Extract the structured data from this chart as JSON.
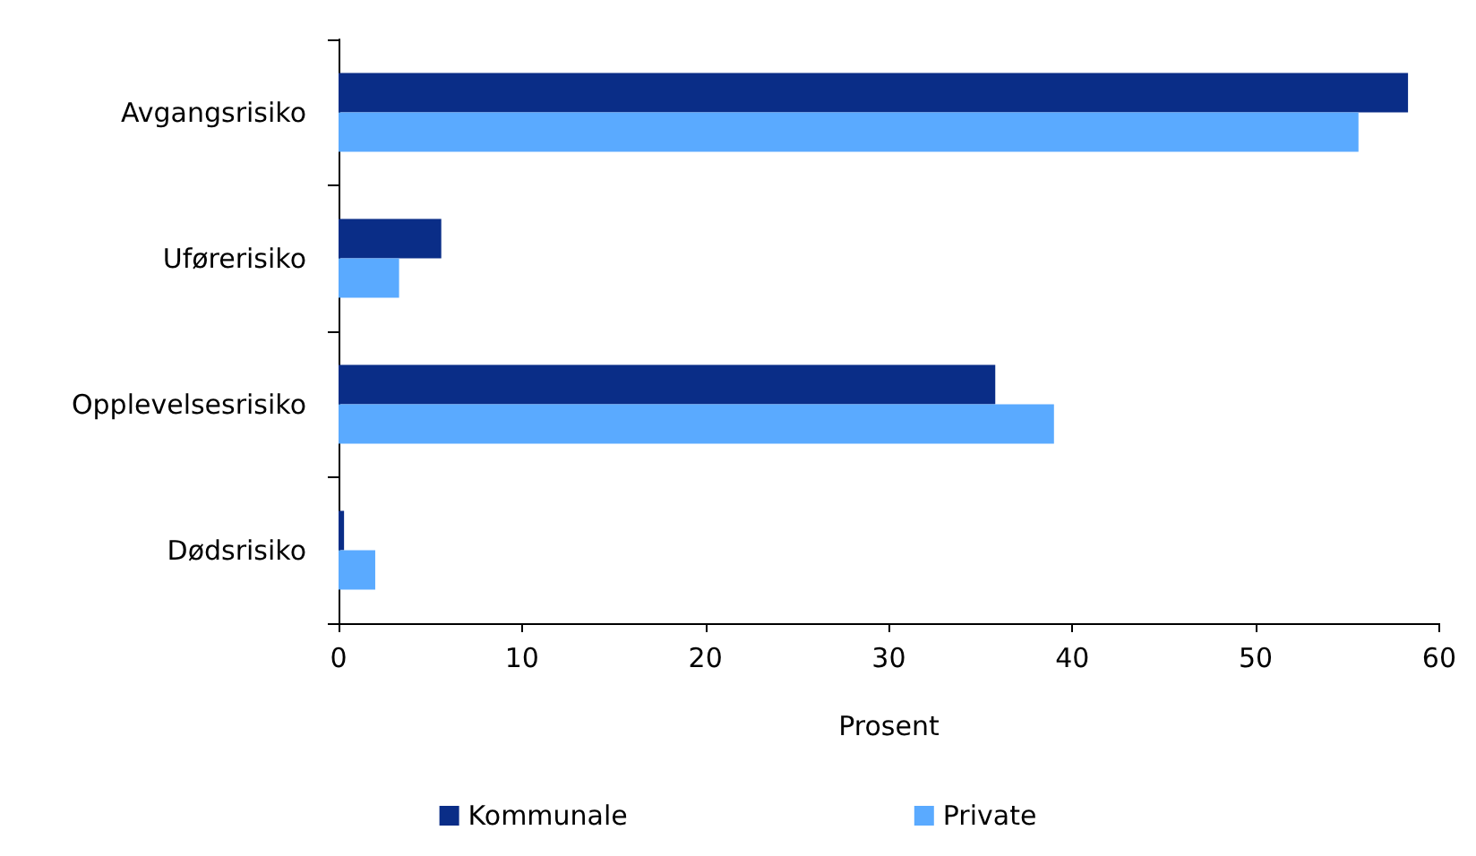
{
  "chart_data": {
    "type": "bar",
    "orientation": "horizontal",
    "categories": [
      "Avgangsrisiko",
      "Uførerisiko",
      "Opplevelsesrisiko",
      "Dødsrisiko"
    ],
    "series": [
      {
        "name": "Kommunale",
        "color": "#0a2d87",
        "values": [
          58.3,
          5.6,
          35.8,
          0.3
        ]
      },
      {
        "name": "Private",
        "color": "#5aaaff",
        "values": [
          55.6,
          3.3,
          39.0,
          2.0
        ]
      }
    ],
    "xlabel": "Prosent",
    "xlim": [
      0,
      60
    ],
    "xticks": [
      0,
      10,
      20,
      30,
      40,
      50,
      60
    ],
    "grid": false,
    "legend": "bottom"
  }
}
